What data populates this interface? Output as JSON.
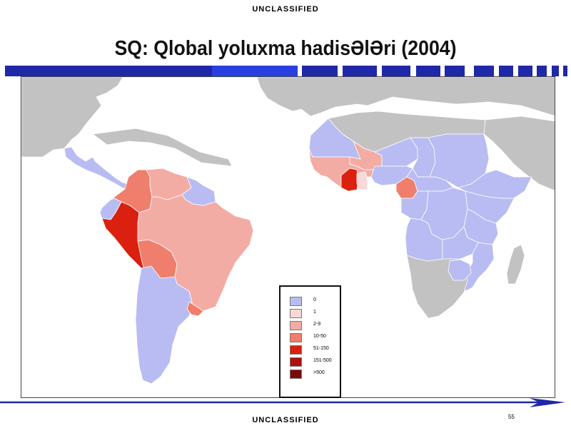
{
  "header": {
    "classification": "UNCLASSIFIED"
  },
  "title": "SQ: Qlobal yoluxma hadisƏlƏri (2004)",
  "footer": {
    "classification": "UNCLASSIFIED",
    "page_number": "55"
  },
  "legend": {
    "items": [
      {
        "label": "0",
        "color": "#b8bcf2"
      },
      {
        "label": "1",
        "color": "#f8d8d8"
      },
      {
        "label": "2-9",
        "color": "#f3aca4"
      },
      {
        "label": "10-50",
        "color": "#f07e6c"
      },
      {
        "label": "51-150",
        "color": "#dc2010"
      },
      {
        "label": "151-500",
        "color": "#b01010"
      },
      {
        "label": ">500",
        "color": "#7a0a0a"
      }
    ]
  },
  "colors": {
    "land_no_data": "#c2c2c2",
    "ocean": "#ffffff",
    "bar_blue": "#1f28a8",
    "bar_bright": "#2a3fe0"
  },
  "map": {
    "regions": [
      {
        "name": "north-america",
        "category": "no-data"
      },
      {
        "name": "caribbean",
        "category": "no-data"
      },
      {
        "name": "central-america",
        "category": "0"
      },
      {
        "name": "colombia",
        "category": "10-50"
      },
      {
        "name": "venezuela",
        "category": "2-9"
      },
      {
        "name": "guianas",
        "category": "0"
      },
      {
        "name": "ecuador",
        "category": "0"
      },
      {
        "name": "peru",
        "category": "51-150"
      },
      {
        "name": "bolivia",
        "category": "10-50"
      },
      {
        "name": "brazil",
        "category": "2-9"
      },
      {
        "name": "southern-cone",
        "category": "0"
      },
      {
        "name": "uruguay",
        "category": "10-50"
      },
      {
        "name": "europe",
        "category": "no-data"
      },
      {
        "name": "north-africa",
        "category": "no-data"
      },
      {
        "name": "middle-east",
        "category": "no-data"
      },
      {
        "name": "mauritania",
        "category": "0"
      },
      {
        "name": "mali",
        "category": "2-9"
      },
      {
        "name": "niger",
        "category": "0"
      },
      {
        "name": "chad",
        "category": "0"
      },
      {
        "name": "sudan",
        "category": "0"
      },
      {
        "name": "west-africa",
        "category": "2-9"
      },
      {
        "name": "cote-divoire",
        "category": "51-150"
      },
      {
        "name": "ghana",
        "category": "1"
      },
      {
        "name": "nigeria",
        "category": "0"
      },
      {
        "name": "cameroon",
        "category": "10-50"
      },
      {
        "name": "car",
        "category": "0"
      },
      {
        "name": "horn-of-africa",
        "category": "0"
      },
      {
        "name": "gabon-congo",
        "category": "0"
      },
      {
        "name": "drc",
        "category": "0"
      },
      {
        "name": "east-africa",
        "category": "0"
      },
      {
        "name": "tanzania",
        "category": "0"
      },
      {
        "name": "angola",
        "category": "0"
      },
      {
        "name": "zambia",
        "category": "0"
      },
      {
        "name": "malawi-moz",
        "category": "0"
      },
      {
        "name": "southern-africa",
        "category": "no-data"
      },
      {
        "name": "zimbabwe",
        "category": "0"
      },
      {
        "name": "madagascar",
        "category": "no-data"
      }
    ]
  }
}
